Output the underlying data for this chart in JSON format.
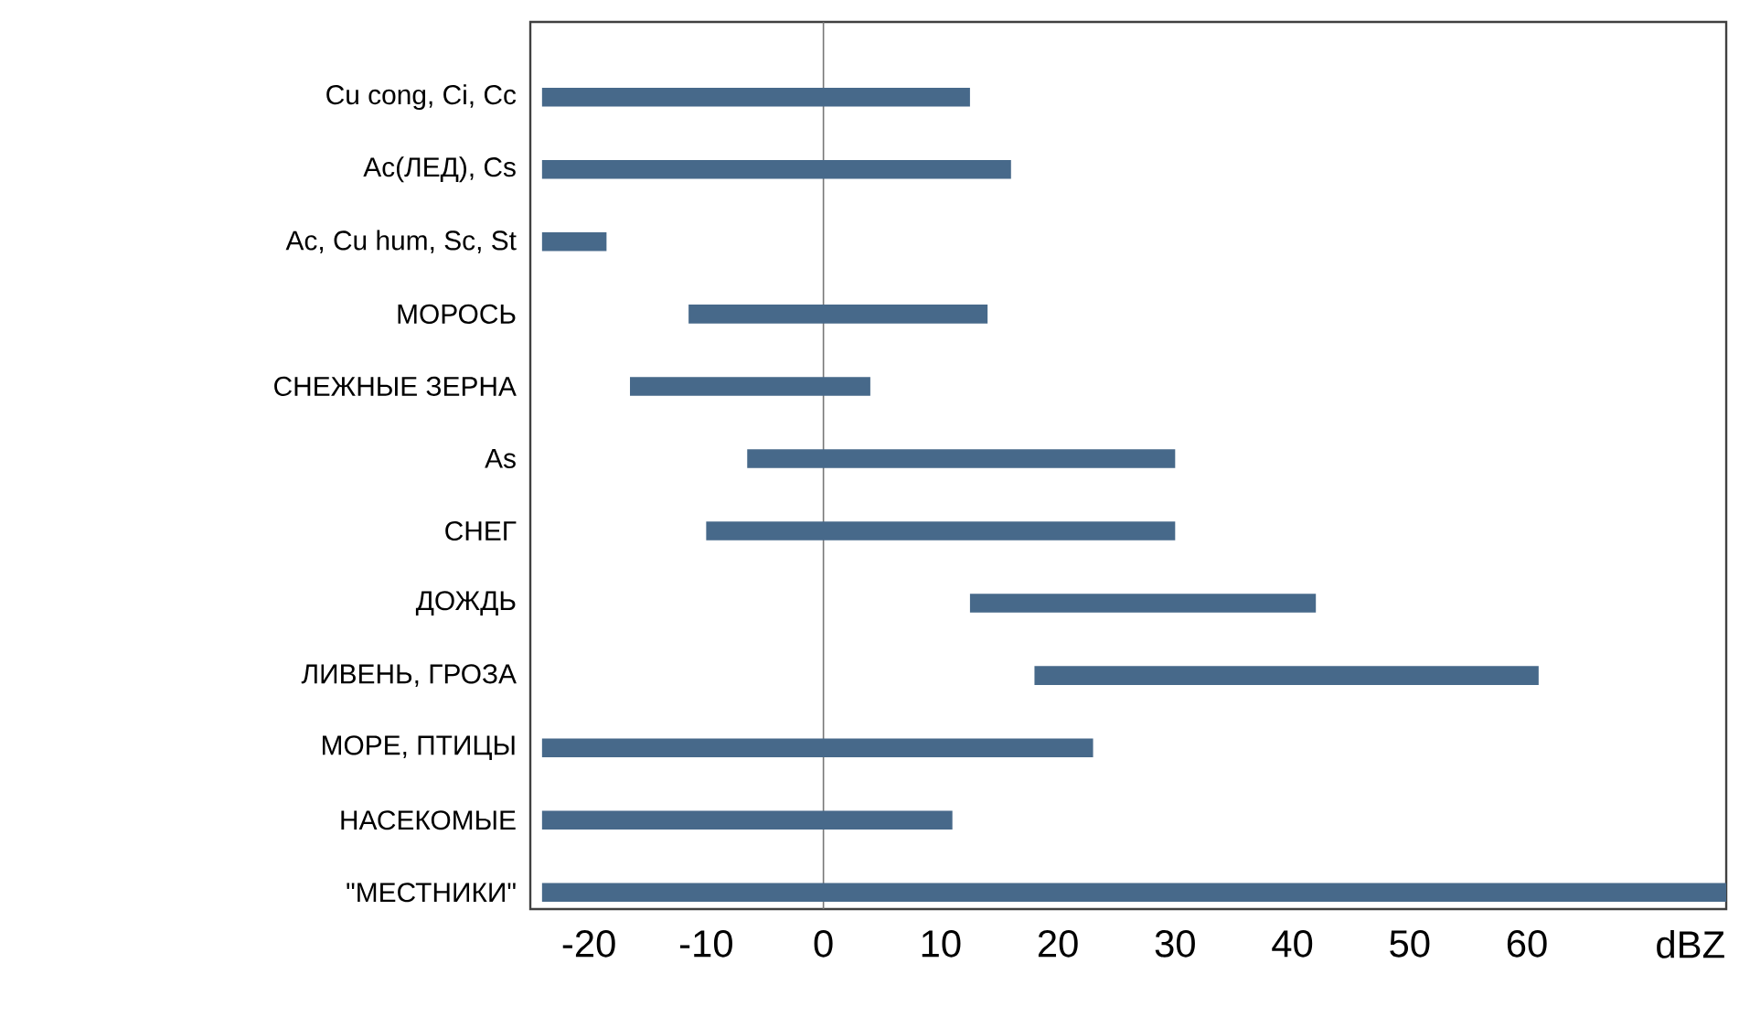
{
  "chart_data": {
    "type": "bar",
    "orientation": "horizontal",
    "xlabel": "dBZ",
    "categories": [
      "Cu cong, Ci, Cc",
      "Ac(ЛЕД), Cs",
      "Ac, Cu hum, Sc, St",
      "МОРОСЬ",
      "СНЕЖНЫЕ ЗЕРНА",
      "As",
      "СНЕГ",
      "ДОЖДЬ",
      "ЛИВЕНЬ, ГРОЗА",
      "МОРЕ, ПТИЦЫ",
      "НАСЕКОМЫЕ",
      "\"МЕСТНИКИ\""
    ],
    "base": [
      -24,
      -24,
      -24,
      -11.5,
      -16.5,
      -6.5,
      -10,
      12.5,
      18,
      -24,
      -24,
      -24
    ],
    "values": [
      36.5,
      40,
      5.5,
      25.5,
      20.5,
      36.5,
      40,
      29.5,
      43,
      47,
      35,
      101
    ],
    "color": "#47698a",
    "xlim": [
      -25,
      77
    ],
    "xticks": [
      -20,
      -10,
      0,
      10,
      20,
      30,
      40,
      50,
      60
    ],
    "ref_lines": [
      {
        "axis": "x",
        "value": 0,
        "color": "#777777"
      }
    ],
    "grid": false
  }
}
